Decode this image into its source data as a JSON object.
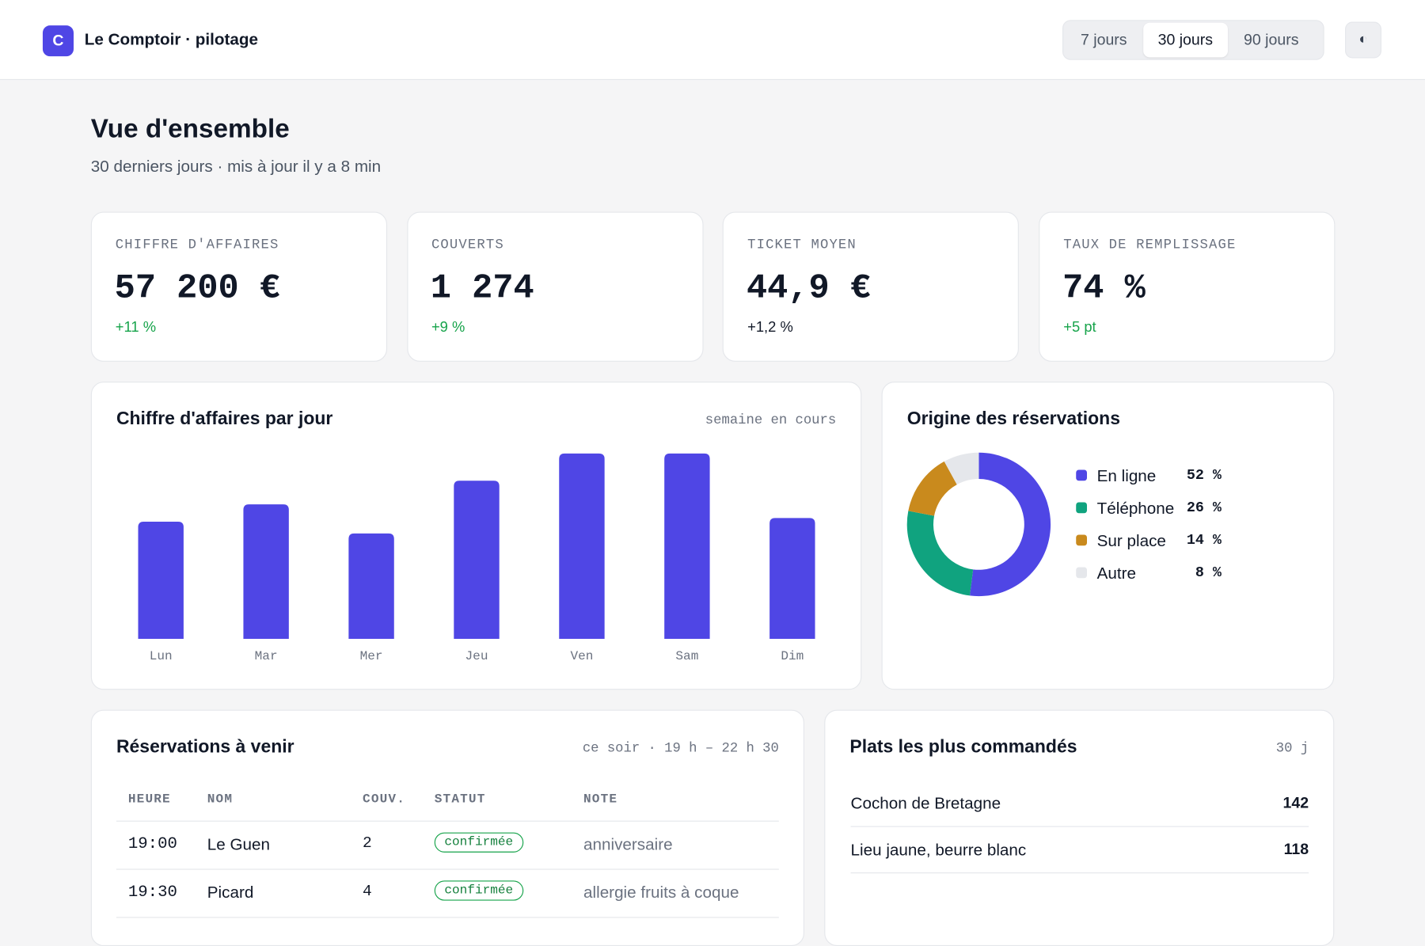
{
  "header": {
    "logo": "C",
    "title": "Le Comptoir · pilotage",
    "periods": [
      "7 jours",
      "30 jours",
      "90 jours"
    ],
    "active_period": 1,
    "theme_toggle": "◐"
  },
  "overview": {
    "title": "Vue d'ensemble",
    "subtitle": "30 derniers jours · mis à jour il y a 8 min"
  },
  "kpis": [
    {
      "label": "CHIFFRE D'AFFAIRES",
      "value": "57 200 €",
      "delta": "+11 %",
      "delta_color": "#16a34a"
    },
    {
      "label": "COUVERTS",
      "value": "1 274",
      "delta": "+9 %",
      "delta_color": "#16a34a"
    },
    {
      "label": "TICKET MOYEN",
      "value": "44,9 €",
      "delta": "+1,2 %",
      "delta_color": "#111827"
    },
    {
      "label": "TAUX DE REMPLISSAGE",
      "value": "74 %",
      "delta": "+5 pt",
      "delta_color": "#16a34a"
    }
  ],
  "chart_data": [
    {
      "type": "bar",
      "title": "Chiffre d'affaires par jour",
      "note": "semaine en cours",
      "categories": [
        "Lun",
        "Mar",
        "Mer",
        "Jeu",
        "Ven",
        "Sam",
        "Dim"
      ],
      "values": [
        129,
        148,
        116,
        174,
        204,
        204,
        133
      ],
      "color": "#4f46e5"
    },
    {
      "type": "donut",
      "title": "Origine des réservations",
      "categories": [
        "En ligne",
        "Téléphone",
        "Sur place",
        "Autre"
      ],
      "values": [
        52,
        26,
        14,
        8
      ],
      "value_labels": [
        "52 %",
        "26 %",
        "14 %",
        "8 %"
      ],
      "colors": [
        "#4f46e5",
        "#10a37f",
        "#c98a1d",
        "#e5e7eb"
      ]
    }
  ],
  "reservations": {
    "title": "Réservations à venir",
    "note": "ce soir · 19 h – 22 h 30",
    "columns": [
      "HEURE",
      "NOM",
      "COUV.",
      "STATUT",
      "NOTE"
    ],
    "rows": [
      [
        "19:00",
        "Le Guen",
        2,
        "confirmée",
        "anniversaire"
      ],
      [
        "19:30",
        "Picard",
        4,
        "confirmée",
        "allergie fruits à coque"
      ]
    ]
  },
  "dishes": {
    "title": "Plats les plus commandés",
    "note": "30 j",
    "rows": [
      [
        "Cochon de Bretagne",
        142
      ],
      [
        "Lieu jaune, beurre blanc",
        118
      ]
    ]
  }
}
